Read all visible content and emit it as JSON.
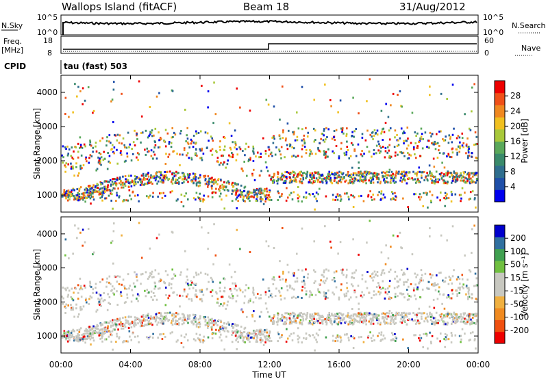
{
  "header": {
    "station": "Wallops Island (fitACF)",
    "beam": "Beam 18",
    "date": "31/Aug/2012"
  },
  "sky_panel": {
    "left_label": "N.Sky",
    "left_ticks": [
      "10^5",
      "10^0"
    ],
    "right_ticks": [
      "10^5",
      "10^0"
    ],
    "right_label": "N.Search"
  },
  "freq_panel": {
    "left_label_1": "Freq.",
    "left_label_2": "[MHz]",
    "left_ticks": [
      "18",
      "8"
    ],
    "right_ticks": [
      "60",
      "0"
    ],
    "right_label": "Nave"
  },
  "cpid_panel": {
    "label": "CPID",
    "value": "tau (fast) 503"
  },
  "colors": {
    "power_scale": [
      "#0000ee",
      "#1f4fa8",
      "#2f6e8e",
      "#3a8a6b",
      "#5aa85a",
      "#a8c83a",
      "#f0c020",
      "#f08820",
      "#f05018",
      "#ee0000"
    ],
    "velocity_scale": [
      "#ee0000",
      "#f05010",
      "#f08a20",
      "#f0b040",
      "#c8c8c0",
      "#c8c8c0",
      "#70c040",
      "#40a050",
      "#3070a0",
      "#0000cc"
    ]
  },
  "chart_data": [
    {
      "type": "heatmap",
      "name_on_chart": "",
      "ylabel": "Slant Range [km]",
      "y_ticks": [
        "1000",
        "2000",
        "3000",
        "4000"
      ],
      "ylim": [
        500,
        4500
      ],
      "x_ticks": [
        "00:00",
        "04:00",
        "08:00",
        "12:00",
        "16:00",
        "20:00",
        "00:00"
      ],
      "xlim_hours": [
        0,
        24
      ],
      "colorbar_label": "Power [dB]",
      "colorbar_ticks": [
        "28",
        "24",
        "20",
        "16",
        "12",
        "8",
        "4"
      ],
      "colorbar_range": [
        0,
        30
      ]
    },
    {
      "type": "heatmap",
      "ylabel": "Slant Range [km]",
      "y_ticks": [
        "1000",
        "2000",
        "3000",
        "4000"
      ],
      "ylim": [
        500,
        4500
      ],
      "x_ticks": [
        "00:00",
        "04:00",
        "08:00",
        "12:00",
        "16:00",
        "20:00",
        "00:00"
      ],
      "xlim_hours": [
        0,
        24
      ],
      "xlabel": "Time UT",
      "colorbar_label": "Velocity [m s⁻¹]",
      "colorbar_ticks": [
        "200",
        "100",
        "50",
        "15",
        "-15",
        "-50",
        "-100",
        "-200"
      ],
      "colorbar_range": [
        -250,
        250
      ]
    }
  ]
}
